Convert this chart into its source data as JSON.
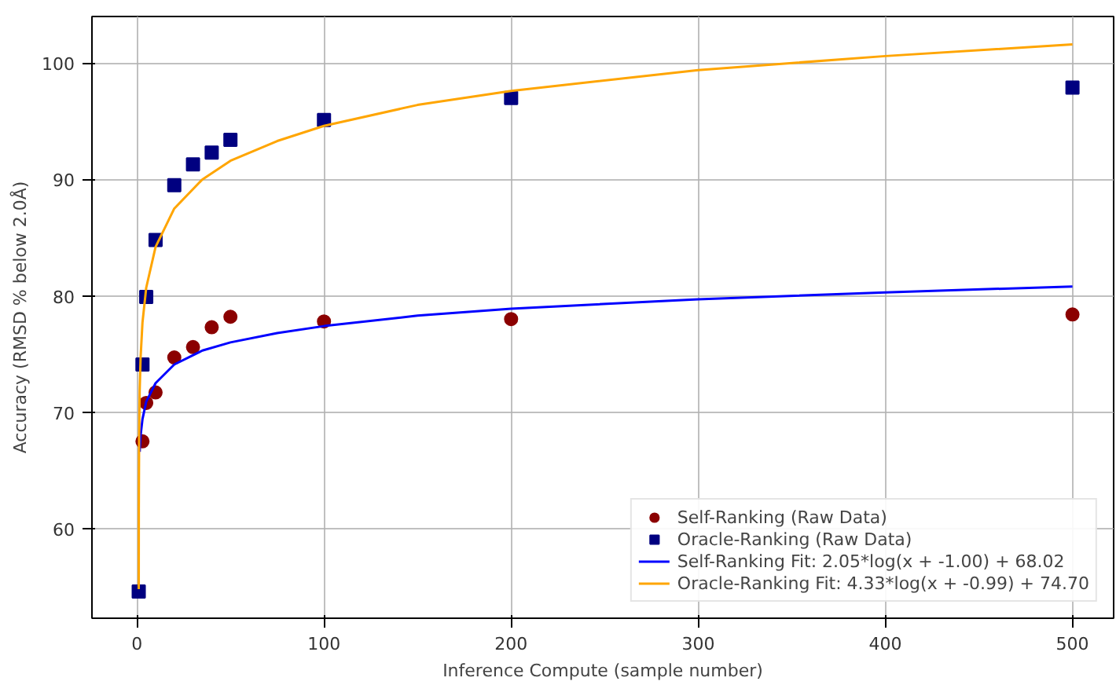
{
  "chart_data": {
    "type": "scatter",
    "xlabel": "Inference Compute (sample number)",
    "ylabel": "Accuracy (RMSD % below 2.0Å)",
    "xlim": [
      -24,
      522
    ],
    "ylim": [
      52.3,
      104
    ],
    "xticks": [
      0,
      100,
      200,
      300,
      400,
      500
    ],
    "yticks": [
      60,
      70,
      80,
      90,
      100
    ],
    "grid": true,
    "legend": "bottom right",
    "series": [
      {
        "name": "Self-Ranking (Raw Data)",
        "marker": "circle",
        "color": "#8b0000",
        "x": [
          3,
          5,
          10,
          20,
          30,
          40,
          50,
          100,
          200,
          500
        ],
        "values": [
          67.5,
          70.8,
          71.7,
          74.7,
          75.6,
          77.3,
          78.2,
          77.8,
          78.0,
          78.4
        ]
      },
      {
        "name": "Oracle-Ranking (Raw Data)",
        "marker": "square",
        "color": "#000080",
        "x": [
          1,
          3,
          5,
          10,
          20,
          30,
          40,
          50,
          100,
          200,
          500
        ],
        "values": [
          54.6,
          74.1,
          79.9,
          84.8,
          89.5,
          91.3,
          92.3,
          93.4,
          95.1,
          97.0,
          97.9
        ]
      },
      {
        "name": "Self-Ranking Fit: 2.05*log(x + -1.00) + 68.02",
        "type": "line",
        "line_style": "solid",
        "color": "#0000ff",
        "x": [
          1.5,
          2,
          3,
          5,
          10,
          20,
          35,
          50,
          75,
          100,
          150,
          200,
          300,
          400,
          500
        ],
        "values": [
          66.6,
          68.0,
          69.4,
          70.9,
          72.5,
          74.1,
          75.3,
          76.0,
          76.8,
          77.4,
          78.3,
          78.9,
          79.7,
          80.3,
          80.8
        ]
      },
      {
        "name": "Oracle-Ranking Fit: 4.33*log(x + -0.99) + 74.70",
        "type": "line",
        "line_style": "solid",
        "color": "#ffa500",
        "x": [
          1,
          1.04,
          1.2,
          1.5,
          2,
          3,
          5,
          10,
          20,
          35,
          50,
          75,
          100,
          150,
          200,
          300,
          400,
          500
        ],
        "values": [
          54.8,
          61.7,
          67.9,
          71.8,
          74.7,
          77.7,
          80.7,
          84.2,
          87.5,
          90.0,
          91.6,
          93.3,
          94.6,
          96.4,
          97.6,
          99.4,
          100.6,
          101.6
        ]
      }
    ]
  }
}
